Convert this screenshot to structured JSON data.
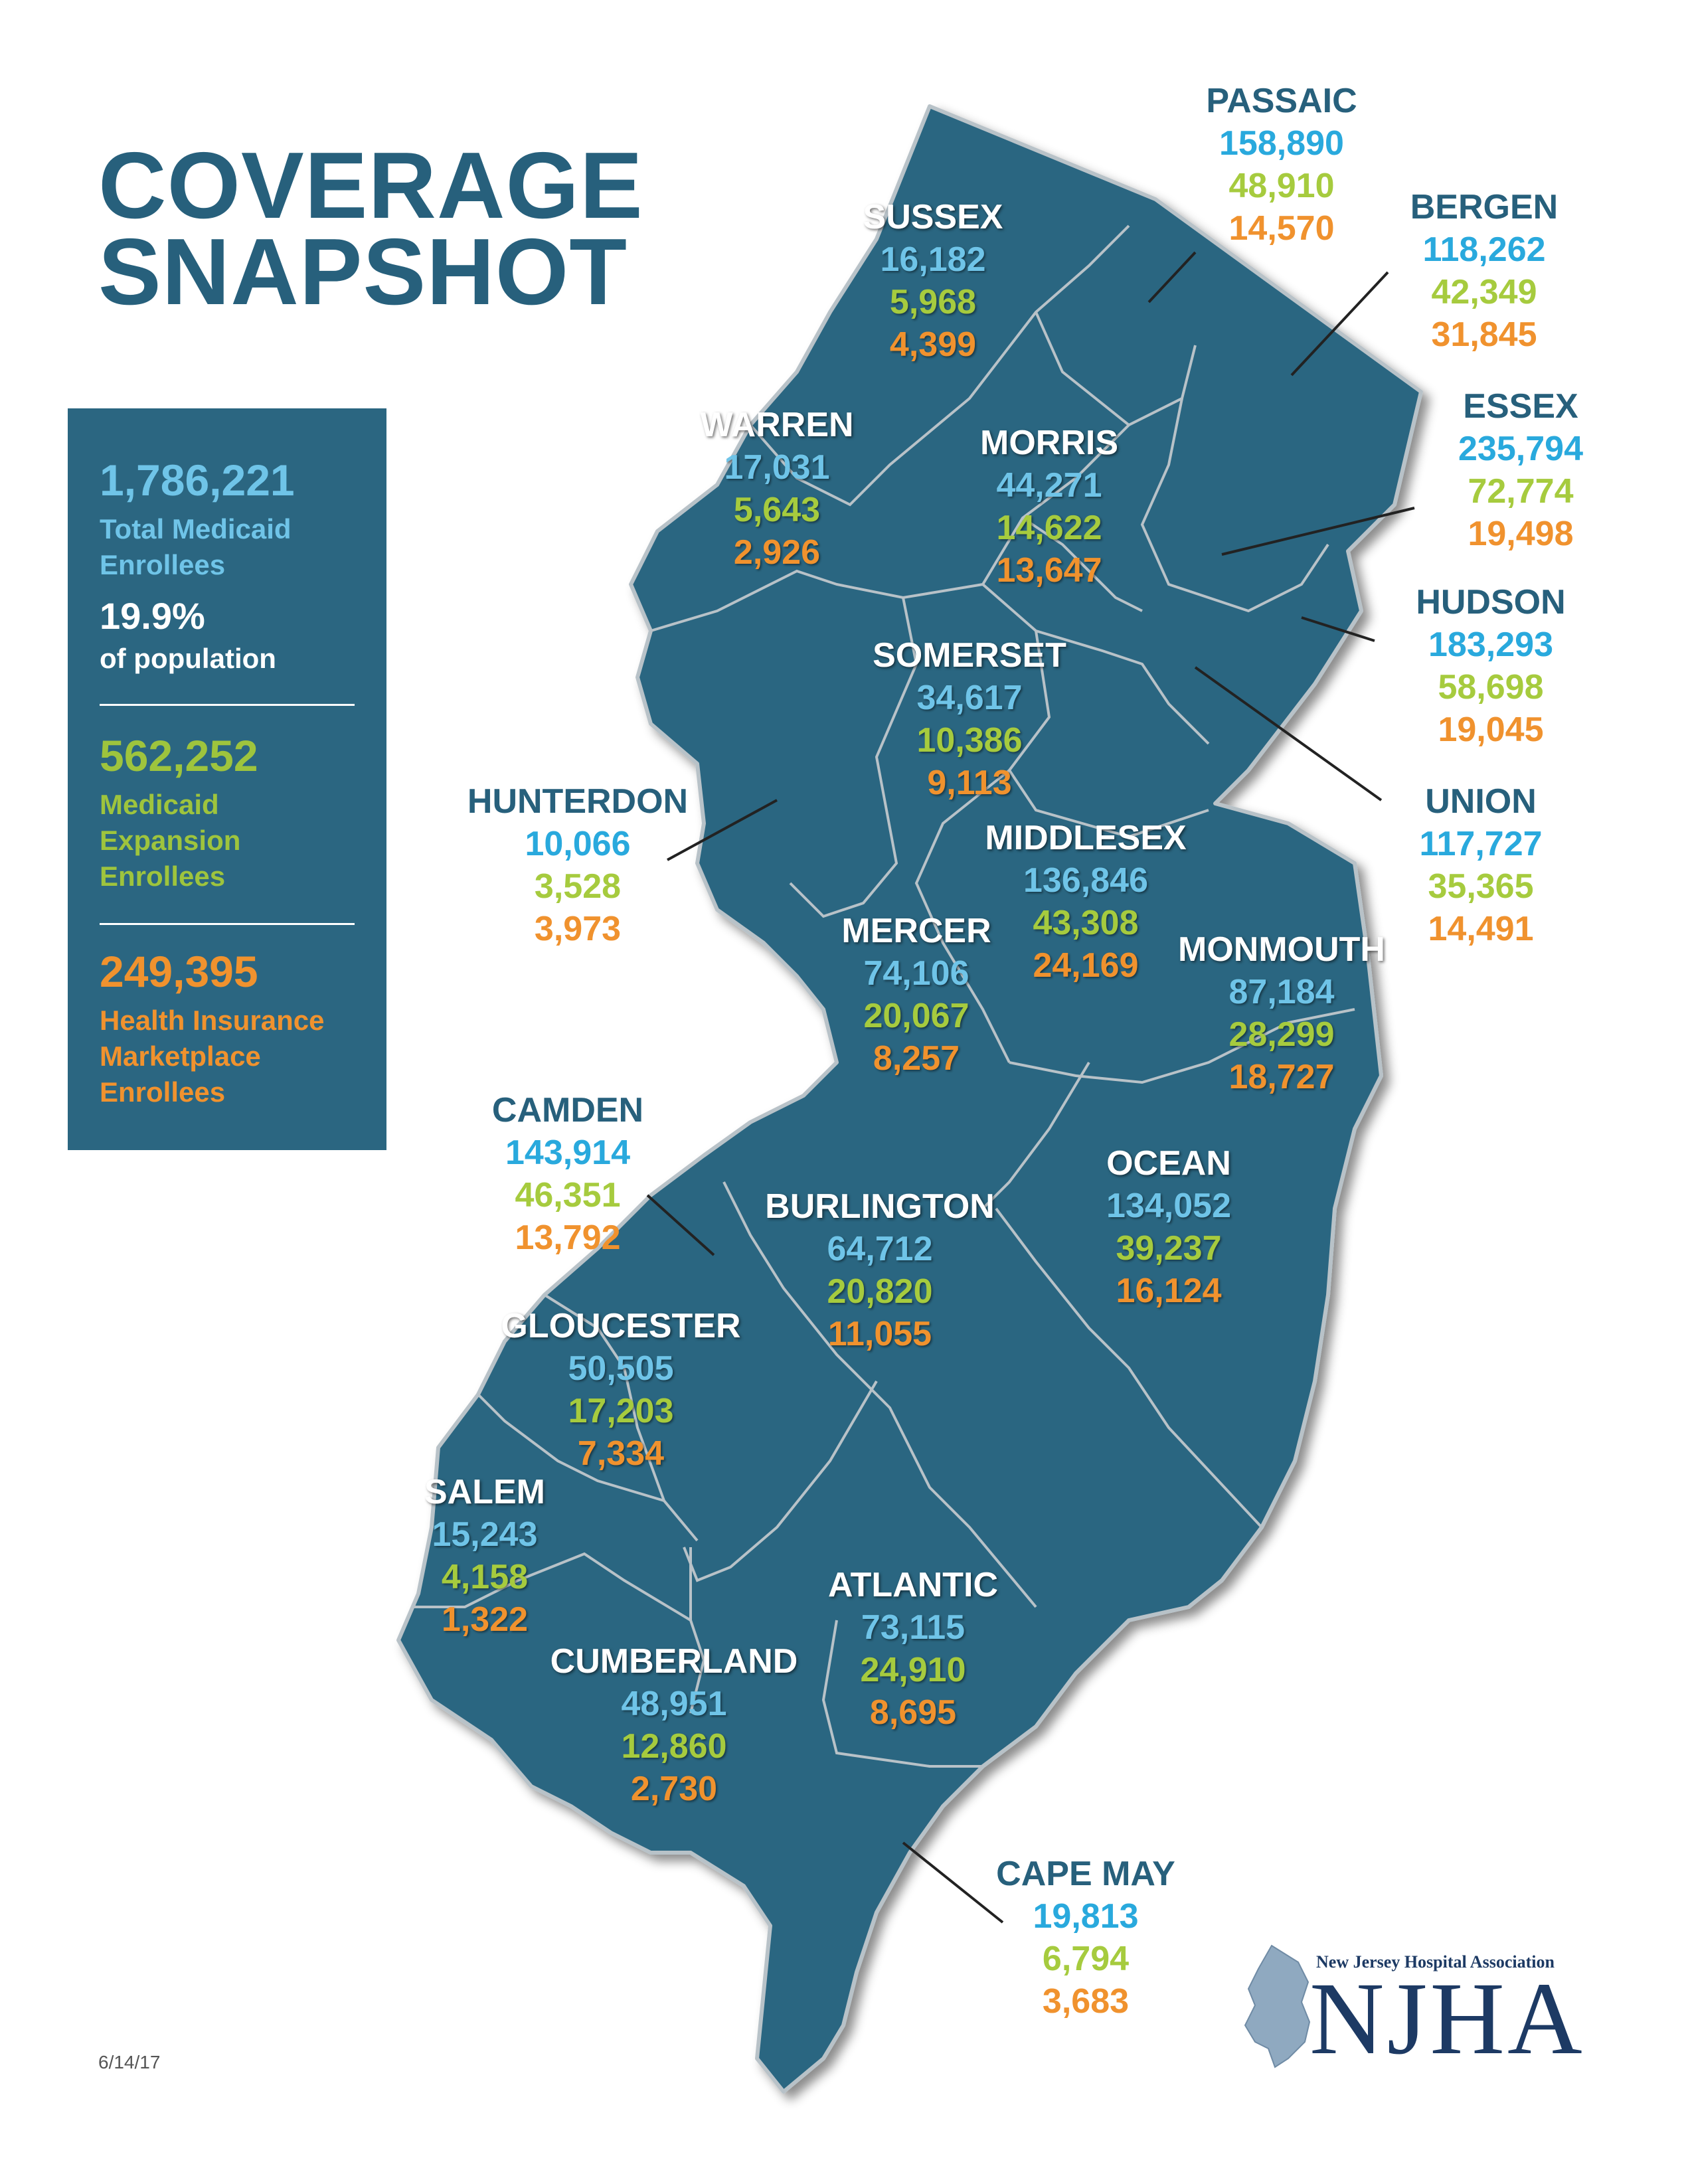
{
  "title": {
    "line1": "COVERAGE",
    "line2": "SNAPSHOT"
  },
  "summary": {
    "total_medicaid": "1,786,221",
    "total_medicaid_label_1": "Total Medicaid",
    "total_medicaid_label_2": "Enrollees",
    "population_pct": "19.9%",
    "population_label": "of population",
    "expansion": "562,252",
    "expansion_label_1": "Medicaid",
    "expansion_label_2": "Expansion",
    "expansion_label_3": "Enrollees",
    "marketplace": "249,395",
    "marketplace_label_1": "Health Insurance",
    "marketplace_label_2": "Marketplace",
    "marketplace_label_3": "Enrollees"
  },
  "counties": [
    {
      "name": "PASSAIC",
      "medicaid": "158,890",
      "expansion": "48,910",
      "marketplace": "14,570"
    },
    {
      "name": "BERGEN",
      "medicaid": "118,262",
      "expansion": "42,349",
      "marketplace": "31,845"
    },
    {
      "name": "SUSSEX",
      "medicaid": "16,182",
      "expansion": "5,968",
      "marketplace": "4,399"
    },
    {
      "name": "ESSEX",
      "medicaid": "235,794",
      "expansion": "72,774",
      "marketplace": "19,498"
    },
    {
      "name": "WARREN",
      "medicaid": "17,031",
      "expansion": "5,643",
      "marketplace": "2,926"
    },
    {
      "name": "MORRIS",
      "medicaid": "44,271",
      "expansion": "14,622",
      "marketplace": "13,647"
    },
    {
      "name": "HUDSON",
      "medicaid": "183,293",
      "expansion": "58,698",
      "marketplace": "19,045"
    },
    {
      "name": "SOMERSET",
      "medicaid": "34,617",
      "expansion": "10,386",
      "marketplace": "9,113"
    },
    {
      "name": "HUNTERDON",
      "medicaid": "10,066",
      "expansion": "3,528",
      "marketplace": "3,973"
    },
    {
      "name": "UNION",
      "medicaid": "117,727",
      "expansion": "35,365",
      "marketplace": "14,491"
    },
    {
      "name": "MIDDLESEX",
      "medicaid": "136,846",
      "expansion": "43,308",
      "marketplace": "24,169"
    },
    {
      "name": "MERCER",
      "medicaid": "74,106",
      "expansion": "20,067",
      "marketplace": "8,257"
    },
    {
      "name": "MONMOUTH",
      "medicaid": "87,184",
      "expansion": "28,299",
      "marketplace": "18,727"
    },
    {
      "name": "CAMDEN",
      "medicaid": "143,914",
      "expansion": "46,351",
      "marketplace": "13,792"
    },
    {
      "name": "OCEAN",
      "medicaid": "134,052",
      "expansion": "39,237",
      "marketplace": "16,124"
    },
    {
      "name": "BURLINGTON",
      "medicaid": "64,712",
      "expansion": "20,820",
      "marketplace": "11,055"
    },
    {
      "name": "GLOUCESTER",
      "medicaid": "50,505",
      "expansion": "17,203",
      "marketplace": "7,334"
    },
    {
      "name": "SALEM",
      "medicaid": "15,243",
      "expansion": "4,158",
      "marketplace": "1,322"
    },
    {
      "name": "ATLANTIC",
      "medicaid": "73,115",
      "expansion": "24,910",
      "marketplace": "8,695"
    },
    {
      "name": "CUMBERLAND",
      "medicaid": "48,951",
      "expansion": "12,860",
      "marketplace": "2,730"
    },
    {
      "name": "CAPE MAY",
      "medicaid": "19,813",
      "expansion": "6,794",
      "marketplace": "3,683"
    }
  ],
  "date": "6/14/17",
  "logo": {
    "association": "New Jersey Hospital Association",
    "abbr": "NJHA"
  },
  "colors": {
    "map_fill": "#2b6681",
    "medicaid": "#6fc4e8",
    "expansion": "#a6cb3e",
    "marketplace": "#f0922e",
    "heading": "#27607c"
  }
}
